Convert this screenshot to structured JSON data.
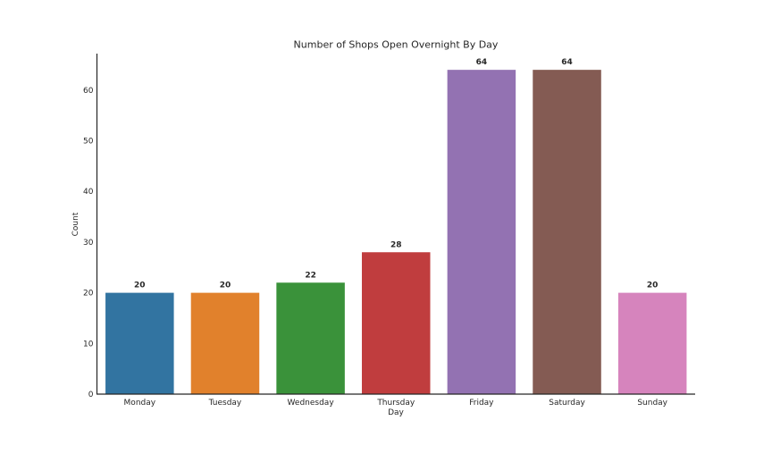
{
  "chart_data": {
    "type": "bar",
    "title": "Number of Shops Open Overnight By Day",
    "xlabel": "Day",
    "ylabel": "Count",
    "categories": [
      "Monday",
      "Tuesday",
      "Wednesday",
      "Thursday",
      "Friday",
      "Saturday",
      "Sunday"
    ],
    "values": [
      20,
      20,
      22,
      28,
      64,
      64,
      20
    ],
    "colors": [
      "#3274a1",
      "#e1812c",
      "#3a923a",
      "#c03d3e",
      "#9372b2",
      "#845b53",
      "#d684bd"
    ],
    "ylim": [
      0,
      67.2
    ],
    "yticks": [
      0,
      10,
      20,
      30,
      40,
      50,
      60
    ],
    "grid": false,
    "legend": "none"
  }
}
